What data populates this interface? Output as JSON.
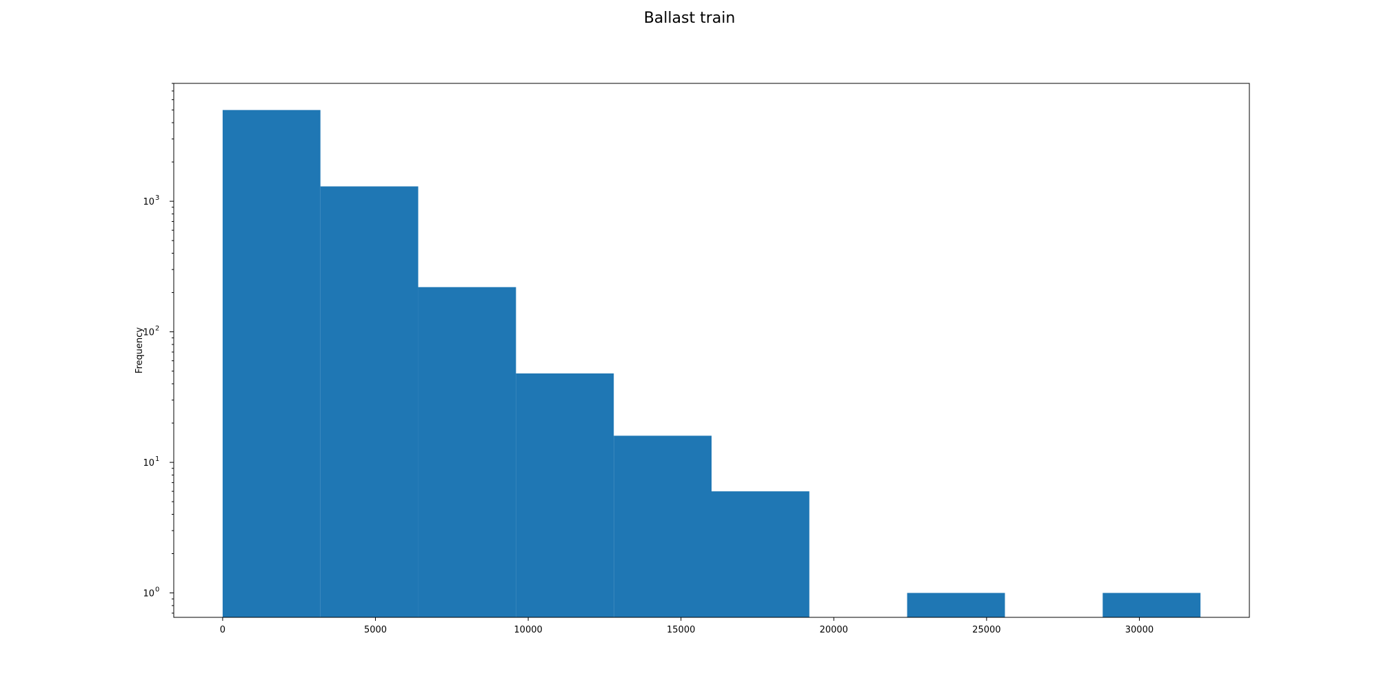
{
  "chart_data": {
    "type": "bar",
    "title": "Ballast train",
    "xlabel": "",
    "ylabel": "Frequency",
    "yscale": "log",
    "grid": false,
    "bar_color": "#1f77b4",
    "bins": [
      {
        "start": 0,
        "end": 3200,
        "count": 5000
      },
      {
        "start": 3200,
        "end": 6400,
        "count": 1300
      },
      {
        "start": 6400,
        "end": 9600,
        "count": 220
      },
      {
        "start": 9600,
        "end": 12800,
        "count": 48
      },
      {
        "start": 12800,
        "end": 16000,
        "count": 16
      },
      {
        "start": 16000,
        "end": 19200,
        "count": 6
      },
      {
        "start": 19200,
        "end": 22400,
        "count": 0
      },
      {
        "start": 22400,
        "end": 25600,
        "count": 1
      },
      {
        "start": 25600,
        "end": 28800,
        "count": 0
      },
      {
        "start": 28800,
        "end": 32000,
        "count": 1
      }
    ],
    "xlim": [
      -1600,
      33600
    ],
    "ylim": [
      0.65,
      8000
    ],
    "x_ticks": [
      0,
      5000,
      10000,
      15000,
      20000,
      25000,
      30000
    ],
    "x_tick_labels": [
      "0",
      "5000",
      "10000",
      "15000",
      "20000",
      "25000",
      "30000"
    ],
    "y_ticks": [
      {
        "value": 1,
        "base": "10",
        "exp": "0"
      },
      {
        "value": 10,
        "base": "10",
        "exp": "1"
      },
      {
        "value": 100,
        "base": "10",
        "exp": "2"
      },
      {
        "value": 1000,
        "base": "10",
        "exp": "3"
      }
    ]
  }
}
